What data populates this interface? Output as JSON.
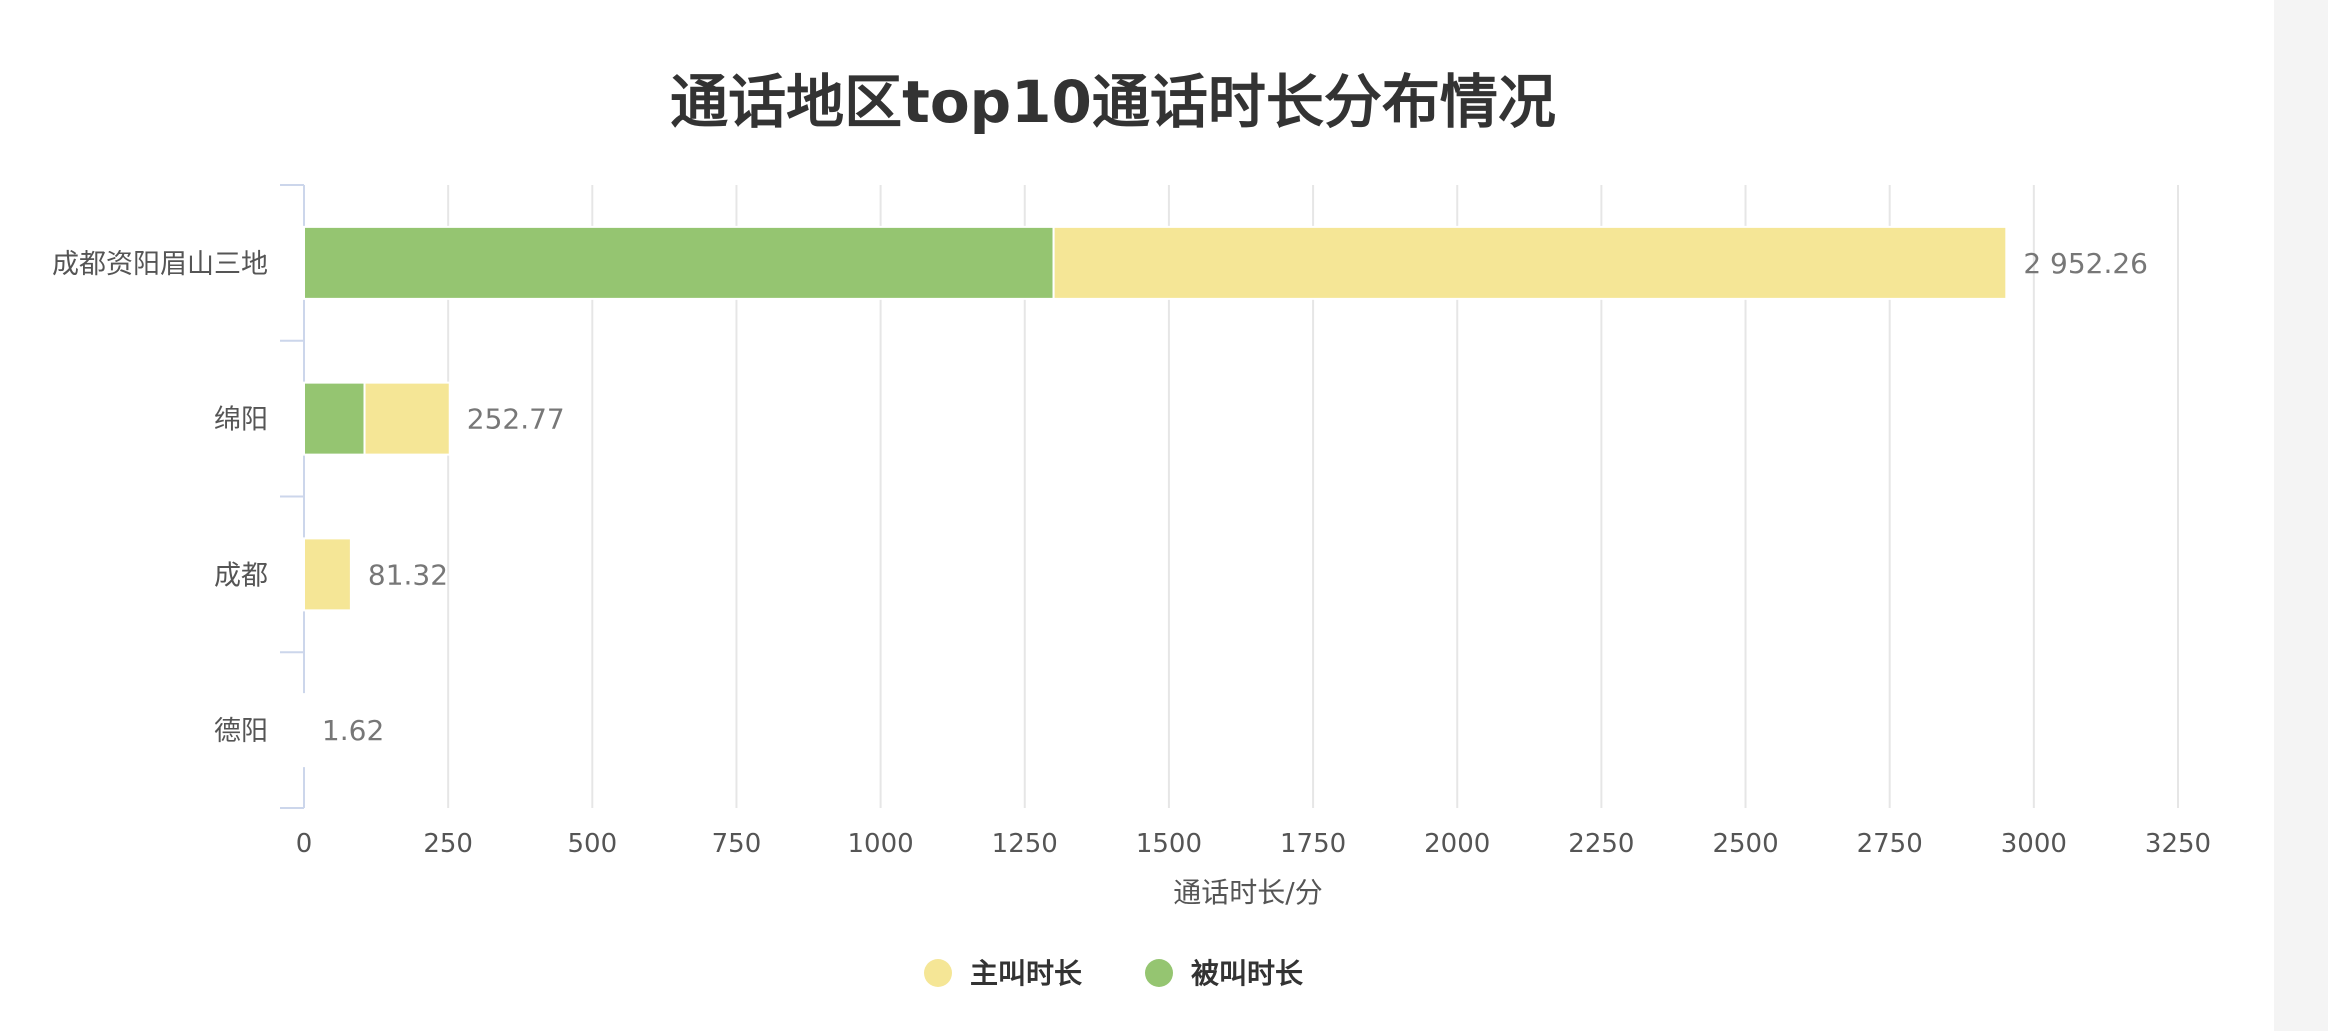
{
  "chart_data": {
    "type": "bar",
    "orientation": "horizontal",
    "stacked": true,
    "title": "通话地区top10通话时长分布情况",
    "xlabel": "通话时长/分",
    "ylabel": "",
    "xlim": [
      0,
      3250
    ],
    "x_ticks": [
      0,
      250,
      500,
      750,
      1000,
      1250,
      1500,
      1750,
      2000,
      2250,
      2500,
      2750,
      3000,
      3250
    ],
    "grid": true,
    "legend_position": "bottom",
    "categories": [
      "成都资阳眉山三地",
      "绵阳",
      "成都",
      "德阳"
    ],
    "series": [
      {
        "name": "被叫时长",
        "color": "#95c571",
        "values": [
          1300,
          105,
          0,
          0
        ]
      },
      {
        "name": "主叫时长",
        "color": "#f5e696",
        "values": [
          1652.26,
          147.77,
          81.32,
          1.62
        ]
      }
    ],
    "totals": [
      2952.26,
      252.77,
      81.32,
      1.62
    ],
    "total_labels": [
      "2 952.26",
      "252.77",
      "81.32",
      "1.62"
    ],
    "legend": [
      {
        "name": "主叫时长",
        "color": "#f5e696"
      },
      {
        "name": "被叫时长",
        "color": "#95c571"
      }
    ]
  }
}
